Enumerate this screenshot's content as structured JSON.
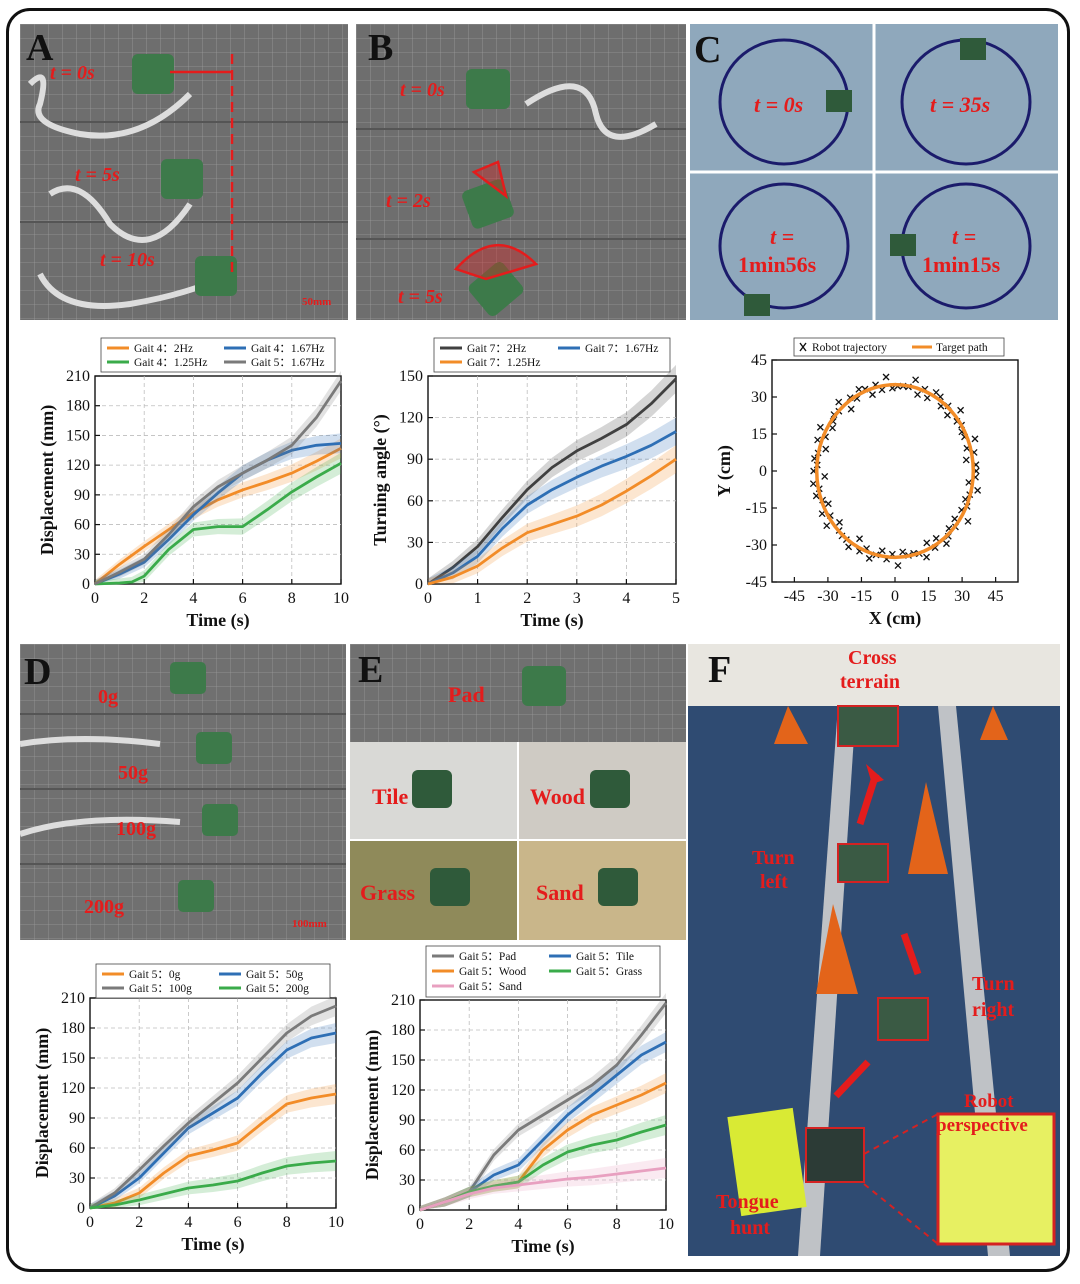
{
  "panels": {
    "A": {
      "letter": "A",
      "labels": [
        "t = 0s",
        "t = 5s",
        "t = 10s"
      ],
      "scale": "50mm"
    },
    "B": {
      "letter": "B",
      "labels": [
        "t = 0s",
        "t = 2s",
        "t = 5s"
      ]
    },
    "C": {
      "letter": "C",
      "labels": [
        "t = 0s",
        "t = 35s",
        "t =",
        "1min56s",
        "t =",
        "1min15s"
      ]
    },
    "D": {
      "letter": "D",
      "labels": [
        "0g",
        "50g",
        "100g",
        "200g"
      ],
      "scale": "100mm"
    },
    "E": {
      "letter": "E",
      "labels": [
        "Pad",
        "Tile",
        "Wood",
        "Grass",
        "Sand"
      ]
    },
    "F": {
      "letter": "F",
      "labels": [
        "Cross",
        "terrain",
        "Turn",
        "left",
        "Turn",
        "right",
        "Robot",
        "perspective",
        "Tongue",
        "hunt"
      ]
    }
  },
  "colors": {
    "orange": "#f28c28",
    "blue": "#2e6fb5",
    "green": "#3aab4a",
    "gray": "#7a7a7a",
    "dark": "#404040",
    "pink": "#e8a0c0",
    "red": "#e41c1c"
  },
  "chart_data": [
    {
      "id": "A",
      "type": "line",
      "xlabel": "Time (s)",
      "ylabel": "Displacement (mm)",
      "xlim": [
        0,
        10
      ],
      "ylim": [
        0,
        210
      ],
      "xticks": [
        0,
        2,
        4,
        6,
        8,
        10
      ],
      "yticks": [
        0,
        30,
        60,
        90,
        120,
        150,
        180,
        210
      ],
      "legend": [
        [
          "Gait 4：2Hz",
          "Gait 4：1.67Hz"
        ],
        [
          "Gait 4：1.25Hz",
          "Gait 5：1.67Hz"
        ]
      ],
      "series": [
        {
          "name": "Gait 4：2Hz",
          "color": "#f28c28",
          "x": [
            0,
            1,
            2,
            3,
            4,
            5,
            6,
            7,
            8,
            9,
            10
          ],
          "y": [
            0,
            20,
            38,
            55,
            72,
            85,
            95,
            103,
            112,
            124,
            137
          ]
        },
        {
          "name": "Gait 4：1.67Hz",
          "color": "#2e6fb5",
          "x": [
            0,
            1,
            2,
            3,
            4,
            5,
            6,
            7,
            8,
            9,
            10
          ],
          "y": [
            0,
            10,
            22,
            45,
            70,
            92,
            112,
            125,
            135,
            140,
            142
          ]
        },
        {
          "name": "Gait 4：1.25Hz",
          "color": "#3aab4a",
          "x": [
            0,
            1,
            1.5,
            2,
            3,
            4,
            5,
            6,
            7,
            8,
            9,
            10
          ],
          "y": [
            0,
            1,
            2,
            8,
            35,
            55,
            58,
            58,
            75,
            93,
            108,
            122
          ]
        },
        {
          "name": "Gait 5：1.67Hz",
          "color": "#7a7a7a",
          "x": [
            0,
            1,
            2,
            3,
            4,
            5,
            6,
            7,
            8,
            9,
            10
          ],
          "y": [
            0,
            12,
            25,
            50,
            78,
            98,
            112,
            125,
            140,
            168,
            205
          ]
        }
      ]
    },
    {
      "id": "B",
      "type": "line",
      "xlabel": "Time (s)",
      "ylabel": "Turning angle (°)",
      "xlim": [
        0,
        5
      ],
      "ylim": [
        0,
        150
      ],
      "xticks": [
        0,
        1,
        2,
        3,
        4,
        5
      ],
      "yticks": [
        0,
        30,
        60,
        90,
        120,
        150
      ],
      "legend": [
        [
          "Gait 7：2Hz",
          "Gait 7：1.67Hz"
        ],
        [
          "Gait 7：1.25Hz"
        ]
      ],
      "series": [
        {
          "name": "Gait 7：2Hz",
          "color": "#404040",
          "x": [
            0,
            0.5,
            1,
            1.5,
            2,
            2.5,
            3,
            3.5,
            4,
            4.5,
            5
          ],
          "y": [
            0,
            12,
            27,
            48,
            68,
            84,
            96,
            105,
            115,
            130,
            148
          ]
        },
        {
          "name": "Gait 7：1.67Hz",
          "color": "#2e6fb5",
          "x": [
            0,
            0.5,
            1,
            1.5,
            2,
            2.5,
            3,
            3.5,
            4,
            4.5,
            5
          ],
          "y": [
            0,
            8,
            20,
            40,
            57,
            68,
            77,
            85,
            92,
            100,
            110
          ]
        },
        {
          "name": "Gait 7：1.25Hz",
          "color": "#f28c28",
          "x": [
            0,
            0.5,
            1,
            1.5,
            2,
            2.5,
            3,
            3.5,
            4,
            4.5,
            5
          ],
          "y": [
            0,
            5,
            13,
            26,
            37,
            43,
            49,
            57,
            67,
            78,
            90
          ]
        }
      ]
    },
    {
      "id": "C",
      "type": "scatter",
      "xlabel": "X (cm)",
      "ylabel": "Y (cm)",
      "xlim": [
        -55,
        55
      ],
      "ylim": [
        -45,
        45
      ],
      "xticks": [
        -45,
        -30,
        -15,
        0,
        15,
        30,
        45
      ],
      "yticks": [
        -45,
        -30,
        -15,
        0,
        15,
        30,
        45
      ],
      "legend": [
        [
          "Robot trajectory",
          "Target path"
        ]
      ],
      "circle": {
        "cx": 0,
        "cy": 0,
        "r": 35,
        "color": "#f28c28"
      },
      "trajectory": {
        "color": "#111111",
        "marker": "x",
        "r": 35,
        "jitter": 2.2
      }
    },
    {
      "id": "D",
      "type": "line",
      "xlabel": "Time (s)",
      "ylabel": "Displacement (mm)",
      "xlim": [
        0,
        10
      ],
      "ylim": [
        0,
        210
      ],
      "xticks": [
        0,
        2,
        4,
        6,
        8,
        10
      ],
      "yticks": [
        0,
        30,
        60,
        90,
        120,
        150,
        180,
        210
      ],
      "legend": [
        [
          "Gait 5：0g",
          "Gait 5：50g"
        ],
        [
          "Gait 5：100g",
          "Gait 5：200g"
        ]
      ],
      "series": [
        {
          "name": "Gait 5：0g",
          "color": "#f28c28",
          "x": [
            0,
            1,
            2,
            3,
            4,
            5,
            6,
            7,
            8,
            9,
            10
          ],
          "y": [
            0,
            5,
            15,
            35,
            52,
            58,
            65,
            85,
            104,
            110,
            114
          ]
        },
        {
          "name": "Gait 5：50g",
          "color": "#2e6fb5",
          "x": [
            0,
            1,
            2,
            3,
            4,
            5,
            6,
            7,
            8,
            9,
            10
          ],
          "y": [
            0,
            12,
            30,
            55,
            80,
            95,
            110,
            135,
            158,
            170,
            175
          ]
        },
        {
          "name": "Gait 5：100g",
          "color": "#7a7a7a",
          "x": [
            0,
            1,
            2,
            3,
            4,
            5,
            6,
            7,
            8,
            9,
            10
          ],
          "y": [
            0,
            15,
            38,
            62,
            85,
            105,
            125,
            150,
            175,
            192,
            202
          ]
        },
        {
          "name": "Gait 5：200g",
          "color": "#3aab4a",
          "x": [
            0,
            1,
            2,
            3,
            4,
            5,
            6,
            7,
            8,
            9,
            10
          ],
          "y": [
            0,
            3,
            8,
            14,
            20,
            23,
            27,
            35,
            42,
            45,
            47
          ]
        }
      ]
    },
    {
      "id": "E",
      "type": "line",
      "xlabel": "Time (s)",
      "ylabel": "Displacement (mm)",
      "xlim": [
        0,
        10
      ],
      "ylim": [
        0,
        210
      ],
      "xticks": [
        0,
        2,
        4,
        6,
        8,
        10
      ],
      "yticks": [
        0,
        30,
        60,
        90,
        120,
        150,
        180,
        210
      ],
      "legend": [
        [
          "Gait 5：Pad",
          "Gait 5：Tile"
        ],
        [
          "Gait 5：Wood",
          "Gait 5：Grass"
        ],
        [
          "Gait 5：Sand"
        ]
      ],
      "series": [
        {
          "name": "Gait 5：Pad",
          "color": "#7a7a7a",
          "x": [
            0,
            1,
            2,
            3,
            4,
            5,
            6,
            7,
            8,
            9,
            10
          ],
          "y": [
            0,
            8,
            18,
            55,
            80,
            95,
            110,
            125,
            145,
            175,
            207
          ]
        },
        {
          "name": "Gait 5：Tile",
          "color": "#2e6fb5",
          "x": [
            0,
            1,
            2,
            3,
            4,
            5,
            6,
            7,
            8,
            9,
            10
          ],
          "y": [
            0,
            8,
            18,
            35,
            45,
            70,
            95,
            115,
            135,
            155,
            168
          ]
        },
        {
          "name": "Gait 5：Wood",
          "color": "#f28c28",
          "x": [
            0,
            1,
            2,
            3,
            4,
            5,
            6,
            7,
            8,
            9,
            10
          ],
          "y": [
            0,
            8,
            18,
            24,
            28,
            60,
            80,
            95,
            105,
            115,
            127
          ]
        },
        {
          "name": "Gait 5：Grass",
          "color": "#3aab4a",
          "x": [
            0,
            1,
            2,
            3,
            4,
            5,
            6,
            7,
            8,
            9,
            10
          ],
          "y": [
            0,
            8,
            18,
            24,
            28,
            45,
            58,
            65,
            70,
            78,
            85
          ]
        },
        {
          "name": "Gait 5：Sand",
          "color": "#e8a0c0",
          "x": [
            0,
            1,
            2,
            3,
            4,
            5,
            6,
            7,
            8,
            9,
            10
          ],
          "y": [
            0,
            8,
            16,
            22,
            25,
            28,
            31,
            33,
            36,
            39,
            42
          ]
        }
      ]
    }
  ]
}
